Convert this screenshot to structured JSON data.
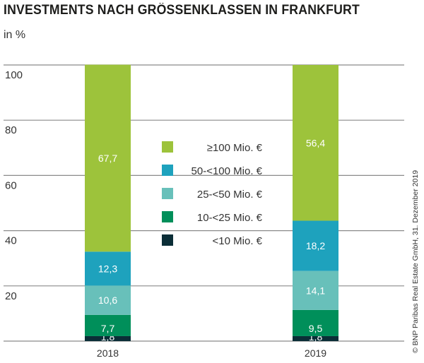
{
  "chart_data": {
    "type": "bar",
    "stacked": true,
    "title": "INVESTMENTS NACH GRÖSSENKLASSEN IN FRANKFURT",
    "ylabel": "in %",
    "ylim": [
      0,
      100
    ],
    "yticks": [
      0,
      20,
      40,
      60,
      80,
      100
    ],
    "ytick_labels": [
      "",
      "20",
      "40",
      "60",
      "80",
      "100"
    ],
    "grid": true,
    "legend_position": "center",
    "categories": [
      "2018",
      "2019"
    ],
    "series": [
      {
        "name": "<10 Mio. €",
        "values": [
          1.8,
          1.8
        ],
        "labels": [
          "1,8",
          "1,8"
        ],
        "color": "#0b2e37"
      },
      {
        "name": "10-<25 Mio. €",
        "values": [
          7.7,
          9.5
        ],
        "labels": [
          "7,7",
          "9,5"
        ],
        "color": "#008f5a"
      },
      {
        "name": "25-<50 Mio. €",
        "values": [
          10.6,
          14.1
        ],
        "labels": [
          "10,6",
          "14,1"
        ],
        "color": "#68c0ba"
      },
      {
        "name": "50-<100 Mio. €",
        "values": [
          12.3,
          18.2
        ],
        "labels": [
          "12,3",
          "18,2"
        ],
        "color": "#1ea2bd"
      },
      {
        "name": "≥100 Mio. €",
        "values": [
          67.7,
          56.4
        ],
        "labels": [
          "67,7",
          "56,4"
        ],
        "color": "#9dc33b"
      }
    ],
    "source": "© BNP Paribas Real Estate GmbH, 31. Dezember 2019"
  }
}
